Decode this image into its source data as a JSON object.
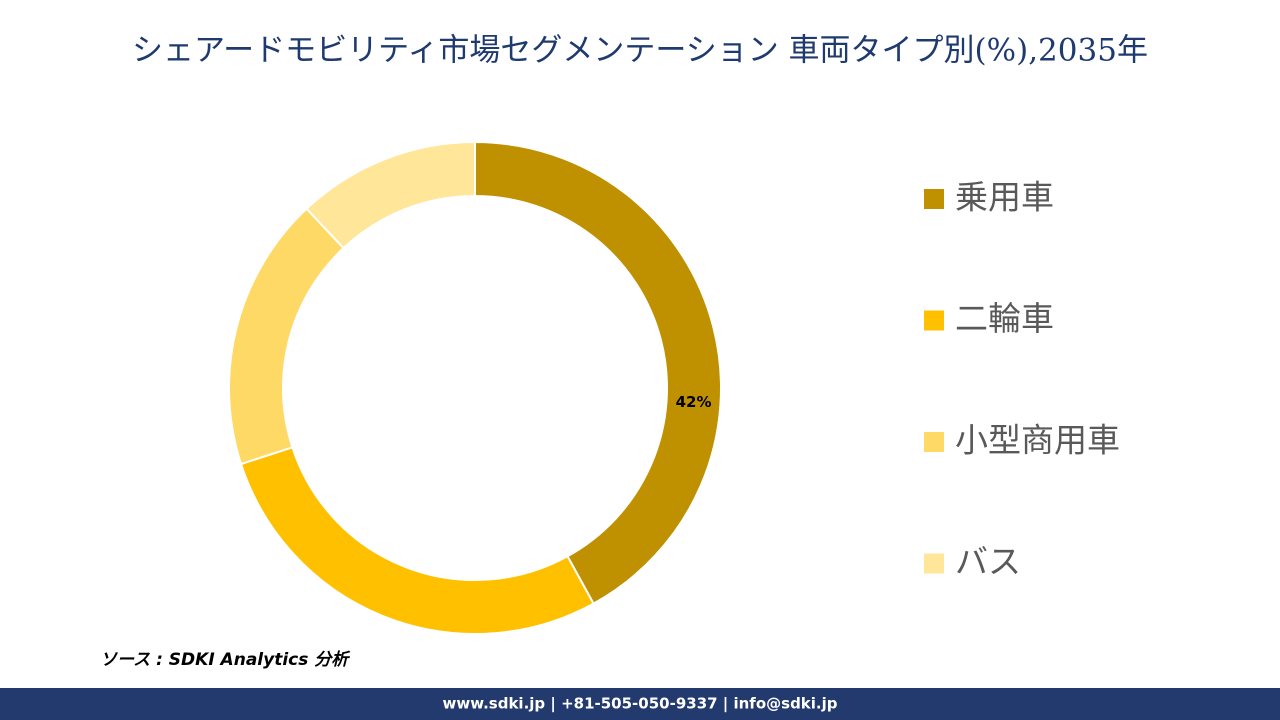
{
  "chart_data": {
    "type": "pie",
    "title": "シェアードモビリティ市場セグメンテーション 車両タイプ別(%),2035年",
    "categories": [
      "乗用車",
      "二輪車",
      "小型商用車",
      "バス"
    ],
    "values": [
      42,
      28,
      18,
      12
    ],
    "value_labels": [
      "42%",
      null,
      null,
      null
    ],
    "colors": [
      "#bf9000",
      "#ffc000",
      "#ffd966",
      "#ffe699"
    ]
  },
  "source": "ソース : SDKI Analytics 分析",
  "footer": "www.sdki.jp | +81-505-050-9337 | info@sdki.jp"
}
